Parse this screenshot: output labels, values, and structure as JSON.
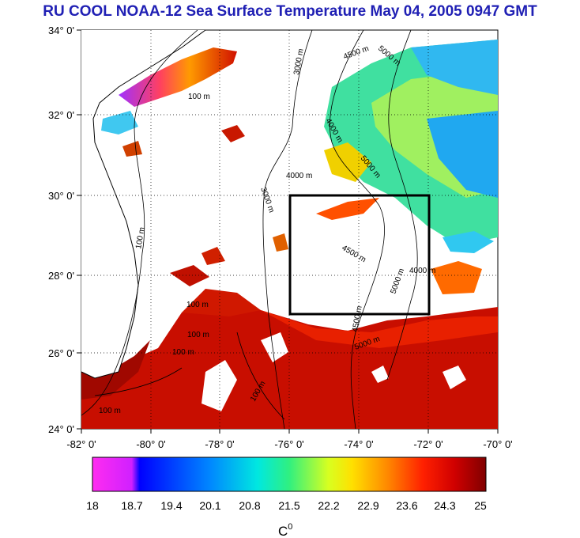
{
  "title": "RU COOL  NOAA-12 Sea Surface Temperature May 04, 2005 0947 GMT",
  "map": {
    "lat_ticks": [
      "34° 0'",
      "32° 0'",
      "30° 0'",
      "28° 0'",
      "26° 0'",
      "24° 0'"
    ],
    "lon_ticks": [
      "-82° 0'",
      "-80° 0'",
      "-78° 0'",
      "-76° 0'",
      "-74° 0'",
      "-72° 0'",
      "-70° 0'"
    ],
    "grid": true,
    "lat_range": [
      24,
      34
    ],
    "lon_range": [
      -82,
      -70
    ],
    "study_box": {
      "lon": [
        -76,
        -72
      ],
      "lat": [
        27,
        30
      ]
    },
    "contour_labels": [
      "100 m",
      "100 m",
      "100 m",
      "100 m",
      "3000 m",
      "3000 m",
      "4000 m",
      "4000 m",
      "4500 m",
      "4500 m",
      "4500 m",
      "5000 m",
      "5000 m",
      "5000 m",
      "5000 m",
      "4000 m",
      "100 m",
      "100 m",
      "100 m"
    ]
  },
  "colorbar": {
    "ticks": [
      "18",
      "18.7",
      "19.4",
      "20.1",
      "20.8",
      "21.5",
      "22.2",
      "22.9",
      "23.6",
      "24.3",
      "25"
    ],
    "range": [
      18,
      25
    ],
    "unit": "C",
    "unit_superscript": "0"
  }
}
